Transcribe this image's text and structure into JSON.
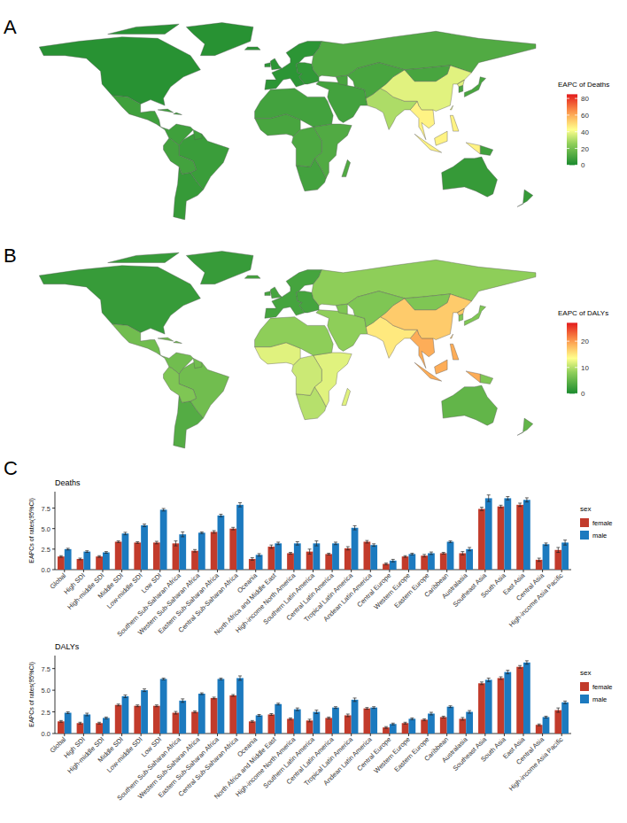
{
  "chart_data": [
    {
      "type": "choropleth",
      "panel_label": "A",
      "colorbar": {
        "title": "EAPC of Deaths",
        "lim": [
          0,
          85
        ],
        "ticks": [
          0,
          20,
          40,
          60,
          80
        ]
      },
      "values": [
        null,
        null,
        null,
        null,
        null,
        null,
        9,
        10,
        12,
        11,
        8,
        9,
        3,
        6,
        8,
        7,
        9,
        5,
        4,
        12,
        8,
        6,
        45,
        30,
        38,
        10,
        10
      ]
    },
    {
      "type": "choropleth",
      "panel_label": "B",
      "colorbar": {
        "title": "EAPC of DALYs",
        "lim": [
          0,
          27
        ],
        "ticks": [
          0,
          10,
          20
        ]
      },
      "values": [
        null,
        null,
        null,
        null,
        null,
        null,
        10,
        12,
        12,
        11,
        7,
        8,
        2,
        4,
        6,
        6,
        7,
        3,
        3,
        8,
        6,
        5,
        19,
        15,
        17,
        7,
        7
      ]
    },
    {
      "type": "bar",
      "panel_label": "C",
      "title": "Deaths",
      "y_label": "EAPCs of rates(95%CI)",
      "categories": [
        "Global",
        "High SDI",
        "High-middle SDI",
        "Middle SDI",
        "Low-middle SDI",
        "Low SDI",
        "Southern Sub-Saharan Africa",
        "Western Sub-Saharan Africa",
        "Eastern Sub-Saharan Africa",
        "Central Sub-Saharan Africa",
        "Oceania",
        "North Africa and Middle East",
        "High-income North America",
        "Southern Latin America",
        "Central Latin America",
        "Tropical Latin America",
        "Andean Latin America",
        "Central Europe",
        "Western Europe",
        "Eastern Europe",
        "Caribbean",
        "Australasia",
        "Southeast Asia",
        "South Asia",
        "East Asia",
        "Central Asia",
        "High-income Asia Pacific"
      ],
      "series": [
        {
          "name": "female",
          "color": "#c23b2b",
          "values": [
            1.6,
            1.3,
            1.6,
            3.4,
            3.3,
            3.3,
            3.2,
            2.3,
            4.6,
            5.0,
            1.3,
            2.8,
            2.0,
            2.2,
            1.9,
            2.6,
            3.4,
            0.7,
            1.6,
            1.7,
            2.0,
            2.0,
            7.4,
            7.7,
            7.9,
            1.2,
            2.4
          ],
          "errors": [
            0.1,
            0.1,
            0.1,
            0.1,
            0.1,
            0.15,
            0.3,
            0.15,
            0.15,
            0.15,
            0.15,
            0.2,
            0.1,
            0.3,
            0.1,
            0.2,
            0.15,
            0.1,
            0.1,
            0.15,
            0.1,
            0.2,
            0.2,
            0.15,
            0.2,
            0.2,
            0.3
          ]
        },
        {
          "name": "male",
          "color": "#1c7abf",
          "values": [
            2.5,
            2.2,
            2.1,
            4.4,
            5.4,
            7.3,
            4.3,
            4.5,
            6.6,
            7.9,
            1.8,
            3.2,
            3.2,
            3.2,
            3.2,
            5.1,
            3.0,
            1.1,
            1.9,
            2.0,
            3.4,
            2.5,
            8.7,
            8.7,
            8.5,
            3.1,
            3.3
          ],
          "errors": [
            0.1,
            0.1,
            0.1,
            0.15,
            0.15,
            0.15,
            0.3,
            0.1,
            0.15,
            0.25,
            0.15,
            0.15,
            0.2,
            0.3,
            0.15,
            0.25,
            0.15,
            0.15,
            0.1,
            0.15,
            0.1,
            0.2,
            0.4,
            0.2,
            0.25,
            0.15,
            0.3
          ]
        }
      ],
      "ylim": [
        0,
        9.5
      ],
      "yticks": [
        {
          "value": 0,
          "label": "0.0"
        },
        2.5,
        {
          "value": 5,
          "label": "5.0"
        },
        7.5
      ],
      "grid": false,
      "legend": "right",
      "legend_title": "sex"
    },
    {
      "type": "bar",
      "title": "DALYs",
      "y_label": "EAPCs of rates(95%CI)",
      "categories": [
        "Global",
        "High SDI",
        "High-middle SDI",
        "Middle SDI",
        "Low-middle SDI",
        "Low SDI",
        "Southern Sub-Saharan Africa",
        "Western Sub-Saharan Africa",
        "Eastern Sub-Saharan Africa",
        "Central Sub-Saharan Africa",
        "Oceania",
        "North Africa and Middle East",
        "High-income North America",
        "Southern Latin America",
        "Central Latin America",
        "Tropical Latin America",
        "Andean Latin America",
        "Central Europe",
        "Western Europe",
        "Eastern Europe",
        "Caribbean",
        "Australasia",
        "Southeast Asia",
        "South Asia",
        "East Asia",
        "Central Asia",
        "High-income Asia Pacific"
      ],
      "series": [
        {
          "name": "female",
          "color": "#c23b2b",
          "values": [
            1.4,
            1.2,
            1.2,
            3.3,
            3.2,
            3.2,
            2.4,
            2.5,
            4.1,
            4.4,
            1.4,
            2.2,
            1.7,
            1.5,
            1.8,
            2.1,
            2.9,
            0.7,
            1.2,
            1.6,
            1.9,
            1.7,
            5.8,
            6.4,
            7.7,
            1.0,
            2.7
          ],
          "errors": [
            0.1,
            0.1,
            0.1,
            0.1,
            0.1,
            0.1,
            0.15,
            0.1,
            0.1,
            0.1,
            0.1,
            0.1,
            0.1,
            0.15,
            0.1,
            0.15,
            0.1,
            0.1,
            0.1,
            0.1,
            0.1,
            0.15,
            0.15,
            0.15,
            0.15,
            0.1,
            0.25
          ]
        },
        {
          "name": "male",
          "color": "#1c7abf",
          "values": [
            2.4,
            2.2,
            1.8,
            4.3,
            5.0,
            6.3,
            3.8,
            4.6,
            6.3,
            6.4,
            2.1,
            3.4,
            2.8,
            2.5,
            3.0,
            3.9,
            3.0,
            1.1,
            1.7,
            2.3,
            3.1,
            2.5,
            6.2,
            7.1,
            8.2,
            1.9,
            3.6
          ],
          "errors": [
            0.1,
            0.15,
            0.1,
            0.15,
            0.15,
            0.1,
            0.2,
            0.1,
            0.1,
            0.25,
            0.1,
            0.1,
            0.15,
            0.2,
            0.1,
            0.2,
            0.1,
            0.1,
            0.1,
            0.15,
            0.1,
            0.15,
            0.2,
            0.2,
            0.2,
            0.1,
            0.15
          ]
        }
      ],
      "ylim": [
        0,
        9
      ],
      "yticks": [
        {
          "value": 0,
          "label": "0.0"
        },
        2.5,
        {
          "value": 5,
          "label": "5.0"
        },
        7.5
      ],
      "grid": false,
      "legend": "right",
      "legend_title": "sex"
    }
  ]
}
